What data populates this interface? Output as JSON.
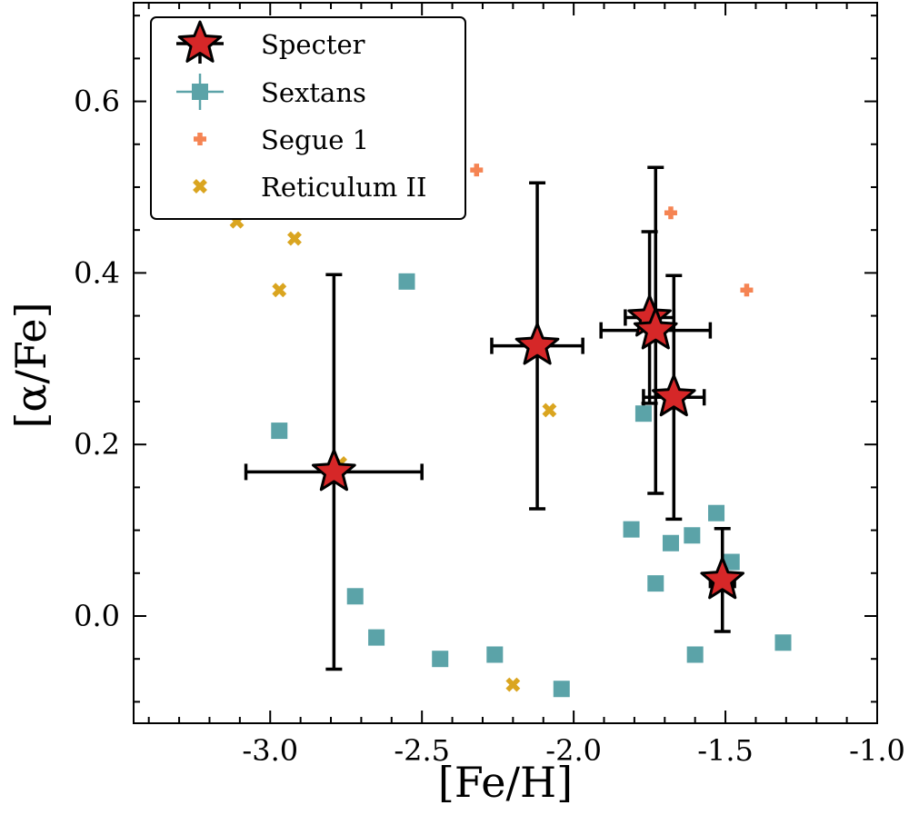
{
  "chart_data": {
    "type": "scatter",
    "xlabel": "[Fe/H]",
    "ylabel": "[α/Fe]",
    "xlim": [
      -3.45,
      -1.0
    ],
    "ylim": [
      -0.125,
      0.715
    ],
    "grid": false,
    "legend_position": "top-left",
    "x_ticks": [
      {
        "value": -3.0,
        "label": "-3.0"
      },
      {
        "value": -2.5,
        "label": "-2.5"
      },
      {
        "value": -2.0,
        "label": "-2.0"
      },
      {
        "value": -1.5,
        "label": "-1.5"
      },
      {
        "value": -1.0,
        "label": "-1.0"
      }
    ],
    "y_ticks": [
      {
        "value": 0.0,
        "label": "0.0"
      },
      {
        "value": 0.2,
        "label": "0.2"
      },
      {
        "value": 0.4,
        "label": "0.4"
      },
      {
        "value": 0.6,
        "label": "0.6"
      }
    ],
    "series": [
      {
        "name": "Specter",
        "marker": "star",
        "color": "#d62728",
        "edge_color": "#000000",
        "points": [
          {
            "x": -2.79,
            "y": 0.168,
            "xerr": 0.29,
            "yerr_low": 0.23,
            "yerr_high": 0.23
          },
          {
            "x": -2.12,
            "y": 0.315,
            "xerr": 0.15,
            "yerr_low": 0.19,
            "yerr_high": 0.19
          },
          {
            "x": -1.75,
            "y": 0.348,
            "xerr": 0.08,
            "yerr_low": 0.1,
            "yerr_high": 0.1
          },
          {
            "x": -1.73,
            "y": 0.333,
            "xerr": 0.18,
            "yerr_low": 0.19,
            "yerr_high": 0.19
          },
          {
            "x": -1.67,
            "y": 0.255,
            "xerr": 0.1,
            "yerr_low": 0.142,
            "yerr_high": 0.142
          },
          {
            "x": -1.51,
            "y": 0.042,
            "xerr": 0.04,
            "yerr_low": 0.06,
            "yerr_high": 0.06
          }
        ]
      },
      {
        "name": "Sextans",
        "marker": "square",
        "color": "#5ba3a8",
        "points": [
          {
            "x": -2.97,
            "y": 0.216
          },
          {
            "x": -2.72,
            "y": 0.023
          },
          {
            "x": -2.65,
            "y": -0.025
          },
          {
            "x": -2.55,
            "y": 0.39
          },
          {
            "x": -2.44,
            "y": -0.05
          },
          {
            "x": -2.26,
            "y": -0.045
          },
          {
            "x": -2.04,
            "y": -0.085
          },
          {
            "x": -1.81,
            "y": 0.101
          },
          {
            "x": -1.77,
            "y": 0.236
          },
          {
            "x": -1.73,
            "y": 0.038
          },
          {
            "x": -1.68,
            "y": 0.085
          },
          {
            "x": -1.61,
            "y": 0.094
          },
          {
            "x": -1.6,
            "y": -0.045
          },
          {
            "x": -1.53,
            "y": 0.12
          },
          {
            "x": -1.48,
            "y": 0.063
          },
          {
            "x": -1.31,
            "y": -0.031
          }
        ]
      },
      {
        "name": "Segue 1",
        "marker": "plus",
        "color": "#f58453",
        "points": [
          {
            "x": -2.32,
            "y": 0.52
          },
          {
            "x": -1.68,
            "y": 0.47
          },
          {
            "x": -1.43,
            "y": 0.38
          }
        ]
      },
      {
        "name": "Reticulum II",
        "marker": "x",
        "color": "#daa520",
        "points": [
          {
            "x": -3.11,
            "y": 0.46
          },
          {
            "x": -2.92,
            "y": 0.44
          },
          {
            "x": -2.97,
            "y": 0.38
          },
          {
            "x": -2.08,
            "y": 0.24
          },
          {
            "x": -2.77,
            "y": 0.178
          },
          {
            "x": -2.2,
            "y": -0.08
          }
        ]
      }
    ]
  }
}
